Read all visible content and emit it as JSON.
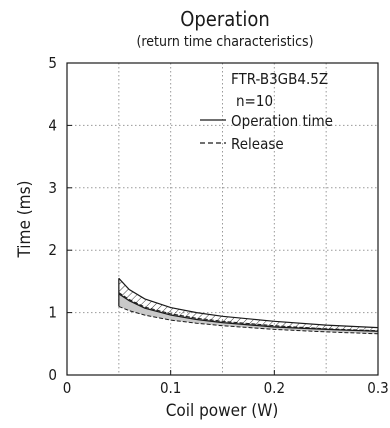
{
  "chart_data": {
    "type": "area",
    "title": "Operation",
    "subtitle": "(return time characteristics)",
    "xlabel": "Coil power (W)",
    "ylabel": "Time (ms)",
    "xlim": [
      0,
      0.3
    ],
    "ylim": [
      0,
      5
    ],
    "xticks": [
      "0",
      "0.1",
      "0.2",
      "0.3"
    ],
    "yticks": [
      "0",
      "1",
      "2",
      "3",
      "4",
      "5"
    ],
    "grid": "dotted",
    "annotations": [
      "FTR-B3GB4.5Z",
      "n=10"
    ],
    "legend": {
      "placement": "top-right",
      "entries": [
        "Operation time",
        "Release"
      ]
    },
    "series": [
      {
        "name": "Operation time",
        "style": "solid band, hatched",
        "x": [
          0.05,
          0.06,
          0.075,
          0.1,
          0.125,
          0.15,
          0.2,
          0.25,
          0.3
        ],
        "upper": [
          1.55,
          1.37,
          1.22,
          1.08,
          1.0,
          0.94,
          0.86,
          0.8,
          0.76
        ],
        "lower": [
          1.3,
          1.19,
          1.07,
          0.96,
          0.89,
          0.84,
          0.77,
          0.73,
          0.7
        ]
      },
      {
        "name": "Release",
        "style": "dashed band, grey fill",
        "x": [
          0.05,
          0.06,
          0.075,
          0.1,
          0.125,
          0.15,
          0.2,
          0.25,
          0.3
        ],
        "upper": [
          1.32,
          1.21,
          1.09,
          0.98,
          0.91,
          0.86,
          0.79,
          0.74,
          0.71
        ],
        "lower": [
          1.1,
          1.03,
          0.96,
          0.88,
          0.83,
          0.79,
          0.73,
          0.69,
          0.66
        ]
      }
    ],
    "colors": {
      "ink": "#1a1a1a",
      "grid": "#9a9a9a",
      "band_fill": "#c9c9c9"
    }
  }
}
